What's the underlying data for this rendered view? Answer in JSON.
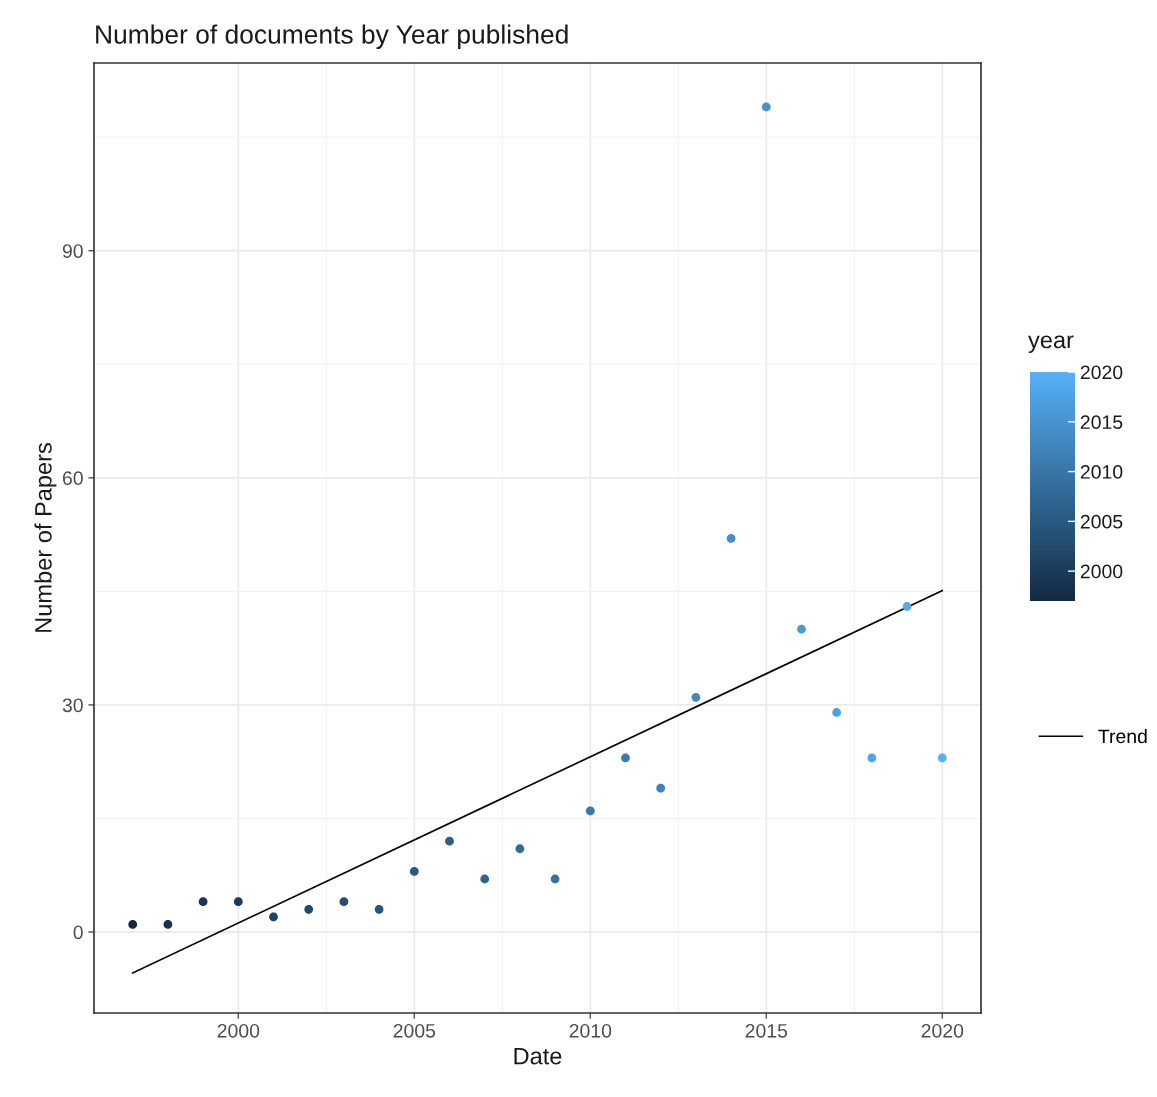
{
  "chart_data": {
    "type": "scatter",
    "title": "Number of documents by Year published",
    "xlabel": "Date",
    "ylabel": "Number of Papers",
    "clabel": "year",
    "xlim": [
      1995.9,
      2021.1
    ],
    "xticks": [
      2000,
      2005,
      2010,
      2015,
      2020
    ],
    "ylim": [
      -10.7,
      114.8
    ],
    "yticks": [
      0,
      30,
      60,
      90
    ],
    "grid": true,
    "legend": "right",
    "clim": [
      1997,
      2020
    ],
    "cticks": [
      2000,
      2005,
      2010,
      2015,
      2020
    ],
    "colors": [
      "#132b43",
      "#56b1f7"
    ],
    "series": [
      {
        "marker": "circle",
        "x": [
          1997,
          1998,
          1999,
          2000,
          2001,
          2002,
          2003,
          2004,
          2005,
          2006,
          2007,
          2008,
          2009,
          2010,
          2011,
          2012,
          2013,
          2014,
          2015,
          2016,
          2017,
          2018,
          2019,
          2020
        ],
        "values": [
          1,
          1,
          4,
          4,
          2,
          3,
          4,
          3,
          8,
          12,
          7,
          11,
          7,
          16,
          23,
          19,
          31,
          52,
          109,
          40,
          29,
          23,
          43,
          23
        ],
        "colors": [
          "#132b43",
          "#16314b",
          "#193753",
          "#1c3c5a",
          "#1f4262",
          "#22486a",
          "#244e72",
          "#27547a",
          "#2a5a82",
          "#2d5f89",
          "#306591",
          "#336b99",
          "#3671a1",
          "#3977a9",
          "#3c7db1",
          "#3f82b8",
          "#4288c0",
          "#458ec8",
          "#4794d0",
          "#4a9ad8",
          "#4da0e0",
          "#50a5e7",
          "#53abef",
          "#56b1f7"
        ]
      },
      {
        "type": "line",
        "name": "Trend",
        "color": "#000000",
        "x": [
          1997,
          2020
        ],
        "values": [
          -5.4,
          45.1
        ]
      }
    ]
  }
}
